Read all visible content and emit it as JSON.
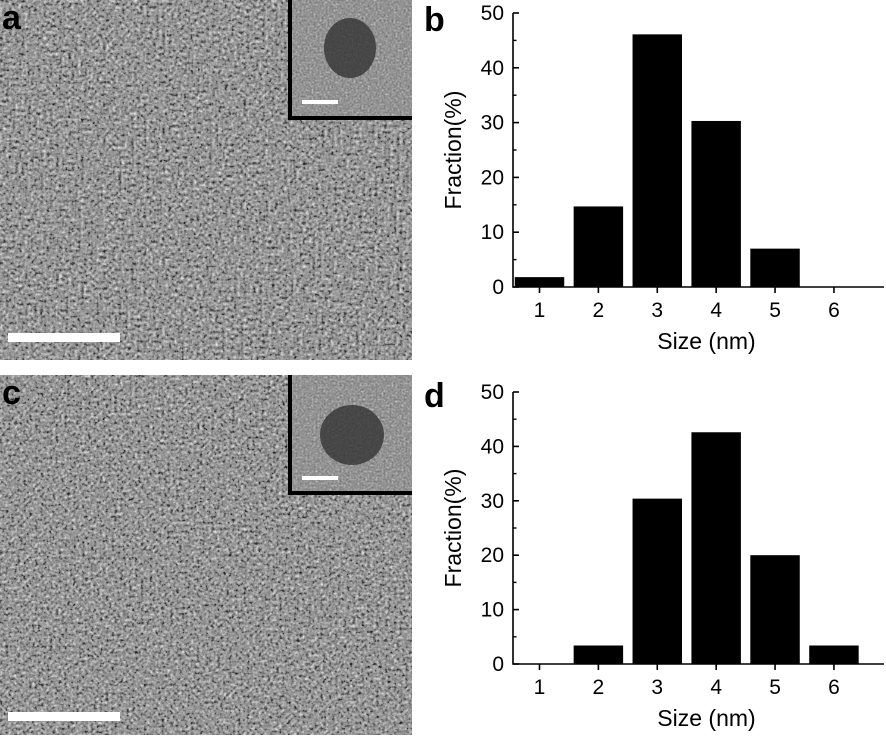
{
  "panels": {
    "a": {
      "letter": "a"
    },
    "b": {
      "letter": "b"
    },
    "c": {
      "letter": "c"
    },
    "d": {
      "letter": "d"
    }
  },
  "chart_data": [
    {
      "type": "bar",
      "panel": "b",
      "categories": [
        "1",
        "2",
        "3",
        "4",
        "5",
        "6"
      ],
      "values": [
        1.8,
        14.7,
        46.1,
        30.3,
        7.0,
        0
      ],
      "xlabel": "Size (nm)",
      "ylabel": "Fraction(%)",
      "ylim": [
        0,
        50
      ],
      "yticks": [
        "0",
        "10",
        "20",
        "30",
        "40",
        "50"
      ],
      "bar_color": "#000000"
    },
    {
      "type": "bar",
      "panel": "d",
      "categories": [
        "1",
        "2",
        "3",
        "4",
        "5",
        "6"
      ],
      "values": [
        0,
        3.4,
        30.4,
        42.6,
        20.0,
        3.4
      ],
      "xlabel": "Size (nm)",
      "ylabel": "Fraction(%)",
      "ylim": [
        0,
        50
      ],
      "yticks": [
        "0",
        "10",
        "20",
        "30",
        "40",
        "50"
      ],
      "bar_color": "#000000"
    }
  ]
}
